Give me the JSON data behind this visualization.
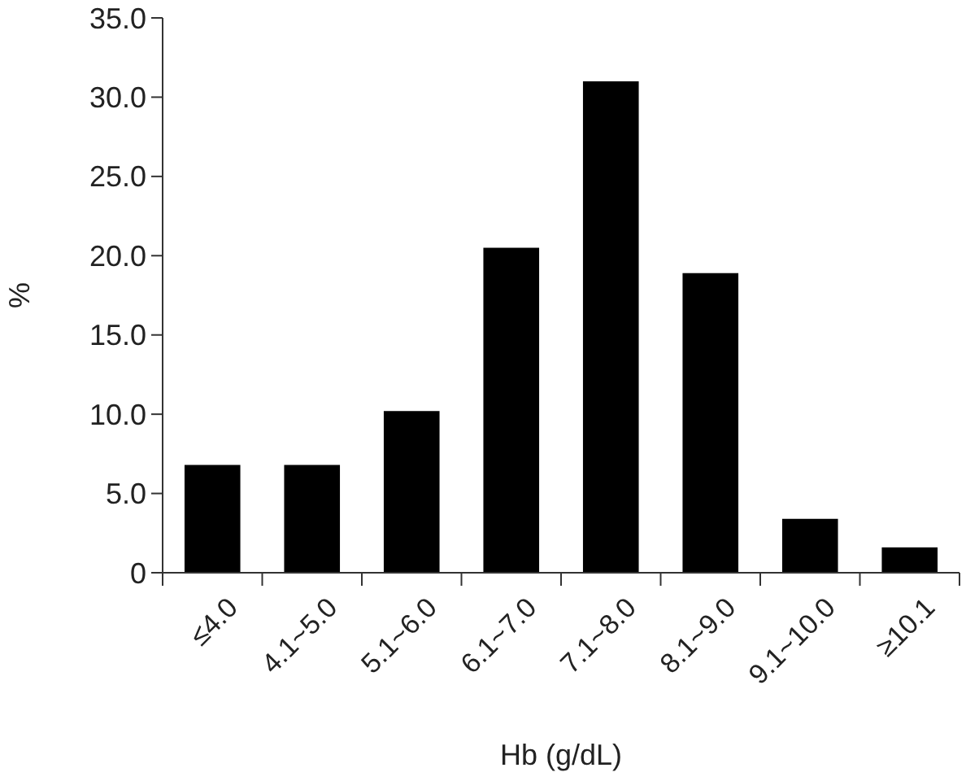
{
  "chart_data": {
    "type": "bar",
    "xlabel": "Hb (g/dL)",
    "ylabel": "%",
    "categories": [
      "≤4.0",
      "4.1~5.0",
      "5.1~6.0",
      "6.1~7.0",
      "7.1~8.0",
      "8.1~9.0",
      "9.1~10.0",
      "≥10.1"
    ],
    "values": [
      6.8,
      6.8,
      10.2,
      20.5,
      31.0,
      18.9,
      3.4,
      1.6
    ],
    "color": "#000000",
    "ylim": [
      0,
      35
    ],
    "yticks": [
      0,
      {
        "value": 5,
        "label": "5.0"
      },
      {
        "value": 10,
        "label": "10.0"
      },
      {
        "value": 15,
        "label": "15.0"
      },
      {
        "value": 20,
        "label": "20.0"
      },
      {
        "value": 25,
        "label": "25.0"
      },
      {
        "value": 30,
        "label": "30.0"
      },
      {
        "value": 35,
        "label": "35.0"
      }
    ],
    "grid": false
  }
}
